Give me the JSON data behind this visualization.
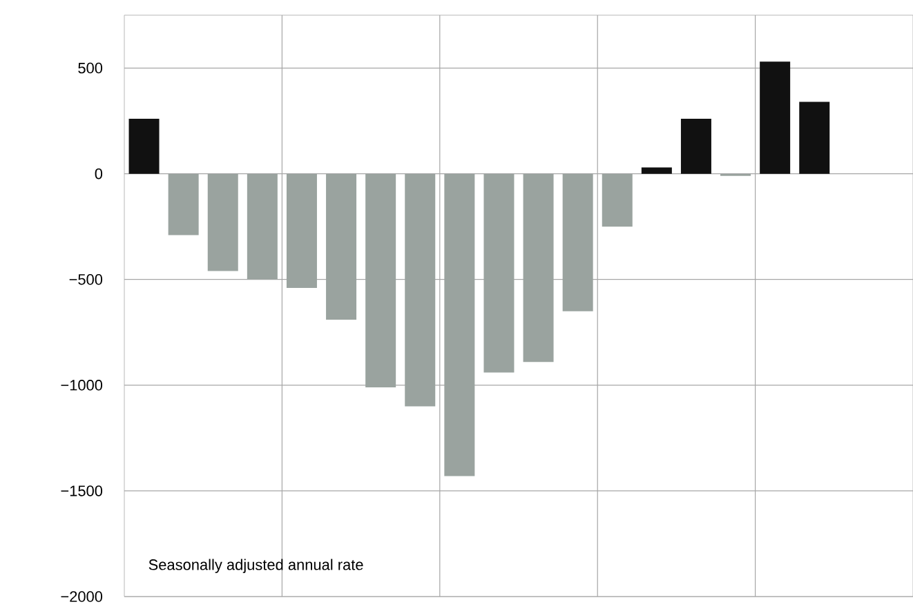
{
  "chart_data": {
    "type": "bar",
    "categories": [
      null,
      null,
      null,
      null,
      null,
      null,
      null,
      null,
      null,
      null,
      null,
      null,
      null,
      null,
      null,
      null,
      null,
      null,
      null,
      null
    ],
    "values": [
      260,
      -290,
      -460,
      -500,
      -540,
      -690,
      -1010,
      -1100,
      -1430,
      -940,
      -890,
      -650,
      -250,
      30,
      260,
      -10,
      530,
      340,
      null,
      null
    ],
    "colors": [
      "#111111",
      "#9aa39f",
      "#9aa39f",
      "#9aa39f",
      "#9aa39f",
      "#9aa39f",
      "#9aa39f",
      "#9aa39f",
      "#9aa39f",
      "#9aa39f",
      "#9aa39f",
      "#9aa39f",
      "#9aa39f",
      "#111111",
      "#111111",
      "#9aa39f",
      "#111111",
      "#111111",
      null,
      null
    ],
    "ylim": [
      -2000,
      750
    ],
    "yticks": [
      {
        "value": -2000,
        "label": "−2000"
      },
      {
        "value": -1500,
        "label": "−1500"
      },
      {
        "value": -1000,
        "label": "−1000"
      },
      {
        "value": -500,
        "label": "−500"
      },
      0,
      500
    ],
    "grid": true,
    "tick_labels": "y",
    "annotations": [
      "Seasonally adjusted annual rate"
    ]
  }
}
